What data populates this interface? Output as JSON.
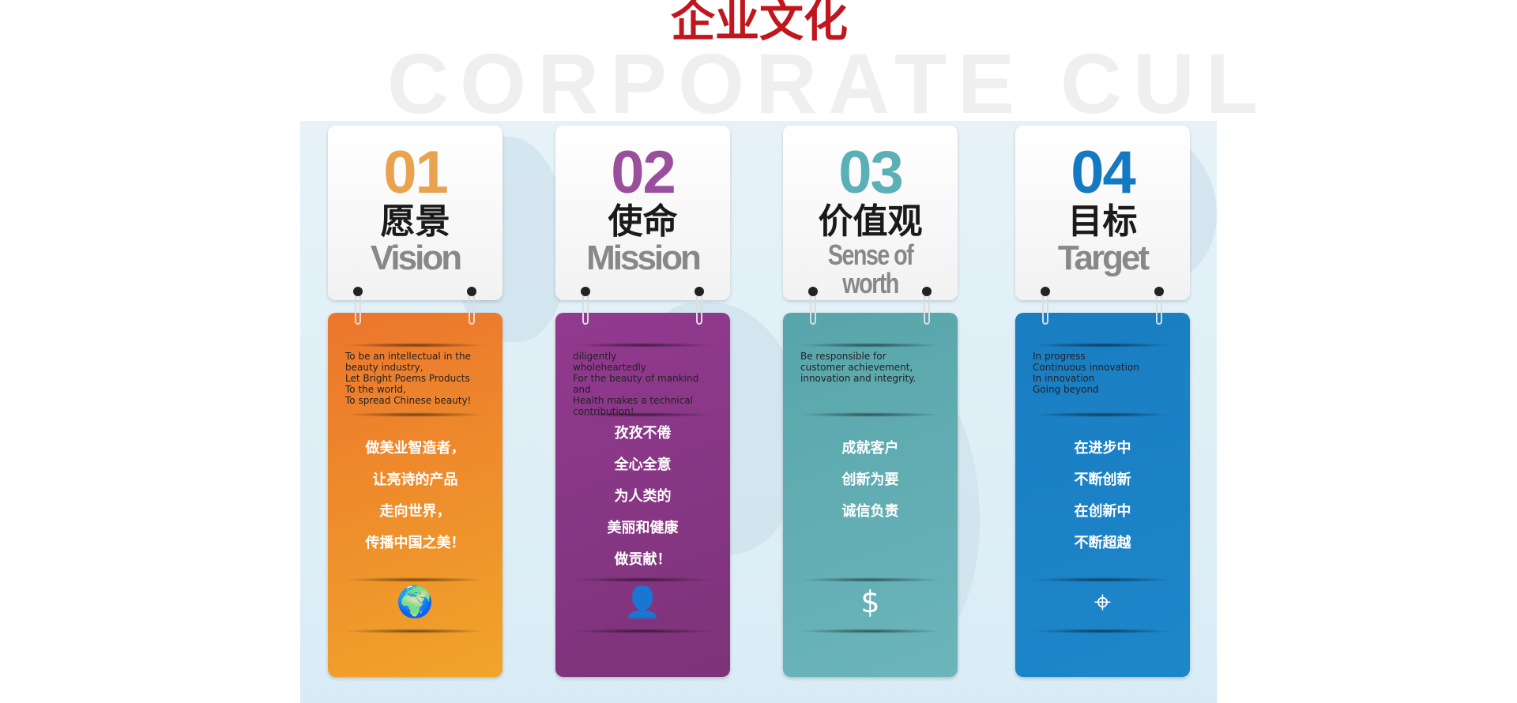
{
  "watermark": "CORPORATE CUL",
  "title": "企业文化",
  "cards": [
    {
      "num": "01",
      "cn": "愿景",
      "en": "Vision",
      "color": "#e9a24d",
      "bg": "linear-gradient(160deg,#ec752d,#f0a52a)",
      "en_text": "To be an intellectual in the\nbeauty industry,\nLet Bright Poems Products\nTo the world,\nTo spread Chinese beauty!",
      "lines": [
        "做美业智造者，",
        "让亮诗的产品",
        "走向世界，",
        "传播中国之美！"
      ],
      "icon": "globe-icon",
      "glyph": "🌍"
    },
    {
      "num": "02",
      "cn": "使命",
      "en": "Mission",
      "color": "#9a4f9c",
      "bg": "linear-gradient(160deg,#923a90,#7c3378)",
      "en_text": "diligently\nwholeheartedly\nFor the beauty of mankind and\nHealth makes a technical\ncontribution!",
      "lines": [
        "孜孜不倦",
        "全心全意",
        "为人类的",
        "美丽和健康",
        "做贡献！"
      ],
      "icon": "person-icon",
      "glyph": "👤"
    },
    {
      "num": "03",
      "cn": "价值观",
      "en": "Sense of worth",
      "color": "#5bb0b8",
      "bg": "linear-gradient(160deg,#57a5aa,#6bb5bb)",
      "en_text": "Be responsible for\ncustomer achievement,\n innovation and integrity.",
      "lines": [
        "成就客户",
        "创新为要",
        "诚信负责"
      ],
      "icon": "dollar-icon",
      "glyph": "$"
    },
    {
      "num": "04",
      "cn": "目标",
      "en": "Target",
      "color": "#1479c1",
      "bg": "linear-gradient(160deg,#1a7dc2,#1d86c9)",
      "en_text": "In progress\nContinuous innovation\nIn innovation\nGoing beyond",
      "lines": [
        "在进步中",
        "不断创新",
        "在创新中",
        "不断超越"
      ],
      "icon": "target-icon",
      "glyph": "⌖"
    }
  ]
}
